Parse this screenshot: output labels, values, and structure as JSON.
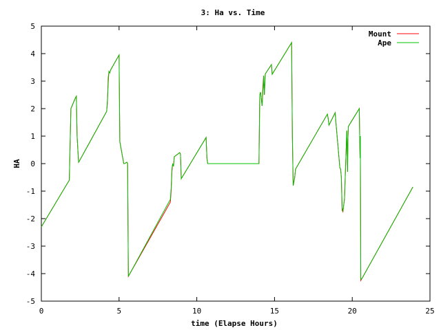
{
  "chart_data": {
    "type": "line",
    "title": "3: Ha vs. Time",
    "xlabel": "time (Elapse Hours)",
    "ylabel": "HA",
    "xlim": [
      0,
      25
    ],
    "ylim": [
      -5,
      5
    ],
    "xticks": [
      0,
      5,
      10,
      15,
      20,
      25
    ],
    "yticks": [
      -5,
      -4,
      -3,
      -2,
      -1,
      0,
      1,
      2,
      3,
      4,
      5
    ],
    "grid": false,
    "legend_position": "top-right",
    "series": [
      {
        "name": "Mount",
        "color": "#ff0000",
        "x": [
          0,
          1.8,
          1.9,
          2.2,
          2.25,
          2.3,
          2.35,
          2.4,
          2.45,
          4.2,
          4.25,
          4.3,
          4.35,
          4.4,
          4.45,
          5.0,
          5.05,
          5.3,
          5.35,
          5.5,
          5.55,
          5.6,
          8.3,
          8.35,
          8.4,
          8.45,
          8.5,
          8.55,
          8.9,
          8.95,
          9.0,
          10.6,
          10.65,
          10.7,
          14.0,
          14.05,
          14.1,
          14.2,
          14.25,
          14.3,
          14.35,
          14.4,
          14.45,
          14.8,
          14.85,
          16.1,
          16.15,
          16.2,
          16.3,
          16.35,
          18.4,
          18.45,
          18.5,
          18.9,
          18.95,
          19.2,
          19.25,
          19.3,
          19.35,
          19.4,
          19.45,
          19.5,
          19.65,
          19.7,
          19.72,
          19.75,
          19.8,
          20.45,
          20.5,
          20.52,
          20.55,
          20.6,
          20.65,
          23.9
        ],
        "y": [
          -2.3,
          -0.6,
          2.0,
          2.4,
          2.45,
          1.0,
          0.5,
          0.05,
          0.1,
          1.9,
          2.2,
          3.1,
          3.35,
          3.3,
          3.4,
          3.95,
          0.8,
          0.0,
          0.0,
          0.05,
          0.0,
          -4.1,
          -1.4,
          -1.0,
          -0.3,
          0.0,
          -0.1,
          0.25,
          0.4,
          0.35,
          -0.55,
          0.95,
          0.2,
          0.0,
          0.0,
          2.5,
          2.6,
          2.1,
          2.8,
          3.2,
          2.5,
          3.25,
          3.3,
          3.6,
          3.25,
          4.4,
          1.0,
          -0.8,
          -0.5,
          -0.2,
          1.8,
          1.65,
          1.4,
          1.85,
          1.5,
          -0.15,
          -0.2,
          -0.5,
          -1.7,
          -1.75,
          -1.5,
          -1.3,
          1.2,
          -0.3,
          0.9,
          1.35,
          1.4,
          2.0,
          0.2,
          1.0,
          -4.25,
          -4.2,
          -4.15,
          -0.85
        ]
      },
      {
        "name": "Ape",
        "color": "#00c000",
        "x": [
          0,
          1.8,
          1.9,
          2.2,
          2.25,
          2.3,
          2.35,
          2.4,
          2.45,
          4.2,
          4.25,
          4.3,
          4.35,
          4.4,
          4.45,
          5.0,
          5.05,
          5.3,
          5.35,
          5.5,
          5.55,
          5.6,
          8.3,
          8.35,
          8.4,
          8.45,
          8.5,
          8.55,
          8.9,
          8.95,
          9.0,
          10.6,
          10.65,
          10.7,
          14.0,
          14.05,
          14.1,
          14.2,
          14.25,
          14.3,
          14.35,
          14.4,
          14.45,
          14.8,
          14.85,
          16.1,
          16.15,
          16.2,
          16.3,
          16.35,
          18.4,
          18.45,
          18.5,
          18.9,
          18.95,
          19.2,
          19.25,
          19.3,
          19.35,
          19.4,
          19.45,
          19.5,
          19.65,
          19.7,
          19.72,
          19.75,
          19.8,
          20.45,
          20.5,
          20.52,
          20.55,
          20.6,
          20.65,
          23.9
        ],
        "y": [
          -2.3,
          -0.6,
          2.0,
          2.4,
          2.45,
          1.0,
          0.5,
          0.05,
          0.1,
          1.9,
          2.3,
          2.9,
          3.35,
          3.3,
          3.4,
          3.95,
          0.8,
          0.0,
          0.0,
          0.05,
          0.0,
          -4.1,
          -1.3,
          -0.9,
          -0.2,
          0.0,
          -0.1,
          0.25,
          0.4,
          0.35,
          -0.55,
          0.95,
          0.2,
          0.0,
          0.0,
          2.5,
          2.6,
          2.1,
          2.6,
          3.2,
          2.5,
          3.25,
          3.3,
          3.6,
          3.25,
          4.4,
          1.0,
          -0.8,
          -0.5,
          -0.2,
          1.8,
          1.65,
          1.4,
          1.85,
          1.5,
          -0.15,
          -0.2,
          -0.5,
          -1.6,
          -1.75,
          -1.5,
          -1.3,
          1.2,
          -0.3,
          0.9,
          1.35,
          1.4,
          2.0,
          0.2,
          1.0,
          -4.2,
          -4.2,
          -4.15,
          -0.85
        ]
      }
    ]
  }
}
